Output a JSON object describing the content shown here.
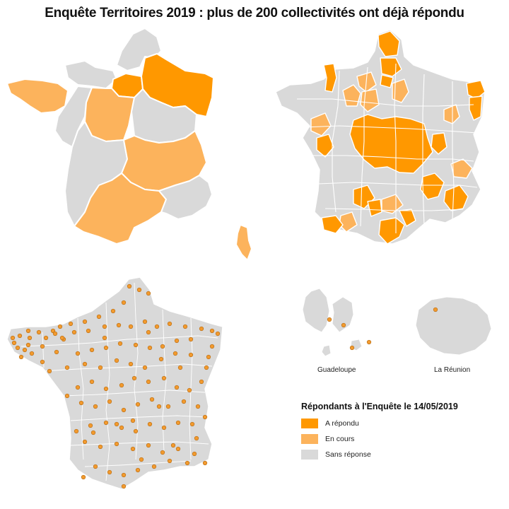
{
  "title": "Enquête Territoires 2019 : plus de 200 collectivités ont déjà répondu",
  "colors": {
    "repondu": "#ff9800",
    "en_cours": "#fcb35c",
    "sans_reponse": "#d9d9d9",
    "border": "#ffffff",
    "dot": "#f29a2e",
    "dot_stroke": "#b36a12"
  },
  "maps": {
    "regions": {
      "name": "regions-map"
    },
    "departements": {
      "name": "departements-map"
    },
    "communes": {
      "name": "communes-map"
    }
  },
  "overseas": {
    "guadeloupe": {
      "label": "Guadeloupe"
    },
    "reunion": {
      "label": "La Réunion"
    }
  },
  "legend": {
    "title": "Répondants à l'Enquête le 14/05/2019",
    "items": [
      {
        "label": "A répondu",
        "color": "#ff9800"
      },
      {
        "label": "En cours",
        "color": "#fcb35c"
      },
      {
        "label": "Sans réponse",
        "color": "#d9d9d9"
      }
    ]
  }
}
